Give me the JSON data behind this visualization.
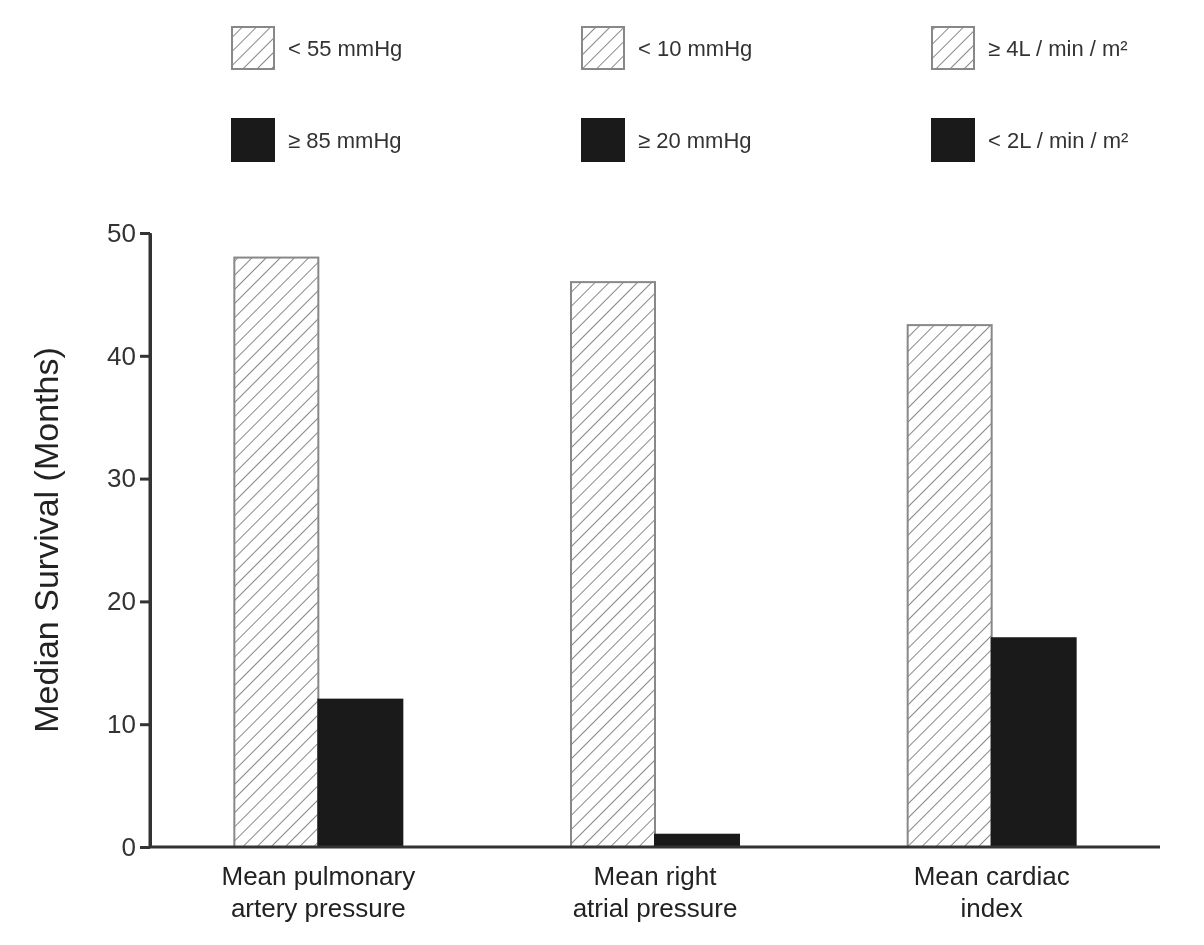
{
  "chart_data": {
    "type": "bar",
    "ylabel": "Median Survival (Months)",
    "categories": [
      "Mean pulmonary\nartery pressure",
      "Mean right\natrial pressure",
      "Mean cardiac\nindex"
    ],
    "series": [
      {
        "name": "< 55 mmHg",
        "color": "#888888",
        "values": [
          48,
          null,
          null
        ]
      },
      {
        "name": "≥ 85 mmHg",
        "color": "#1a1a1a",
        "values": [
          12,
          null,
          null
        ]
      },
      {
        "name": "< 10 mmHg",
        "color": "#888888",
        "values": [
          null,
          46,
          null
        ]
      },
      {
        "name": "≥ 20 mmHg",
        "color": "#1a1a1a",
        "values": [
          null,
          1,
          null
        ]
      },
      {
        "name": "≥ 4L / min / m²",
        "color": "#888888",
        "values": [
          null,
          null,
          42.5
        ]
      },
      {
        "name": "< 2L / min / m²",
        "color": "#1a1a1a",
        "values": [
          null,
          null,
          17
        ]
      }
    ],
    "ylim": [
      0,
      50
    ],
    "yticks": [
      0,
      10,
      20,
      30,
      40,
      50
    ],
    "legend": "top"
  }
}
